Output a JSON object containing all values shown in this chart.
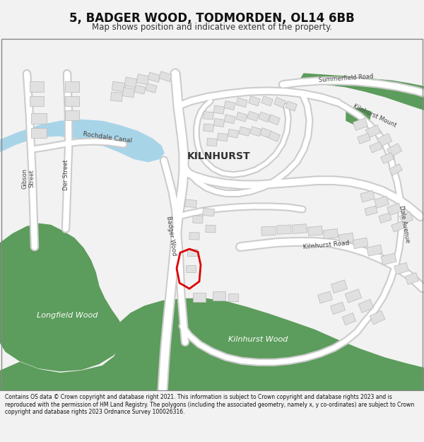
{
  "title": "5, BADGER WOOD, TODMORDEN, OL14 6BB",
  "subtitle": "Map shows position and indicative extent of the property.",
  "footer": "Contains OS data © Crown copyright and database right 2021. This information is subject to Crown copyright and database rights 2023 and is reproduced with the permission of HM Land Registry. The polygons (including the associated geometry, namely x, y co-ordinates) are subject to Crown copyright and database rights 2023 Ordnance Survey 100026316.",
  "bg_color": "#f2f2f2",
  "map_bg": "#ffffff",
  "road_color": "#ffffff",
  "road_outline": "#cccccc",
  "green_color": "#5c9c5c",
  "canal_color": "#a8d4e8",
  "building_color": "#e0e0e0",
  "building_outline": "#b8b8b8",
  "red_plot_color": "#dd0000",
  "text_color": "#333333",
  "label_color": "#444444"
}
